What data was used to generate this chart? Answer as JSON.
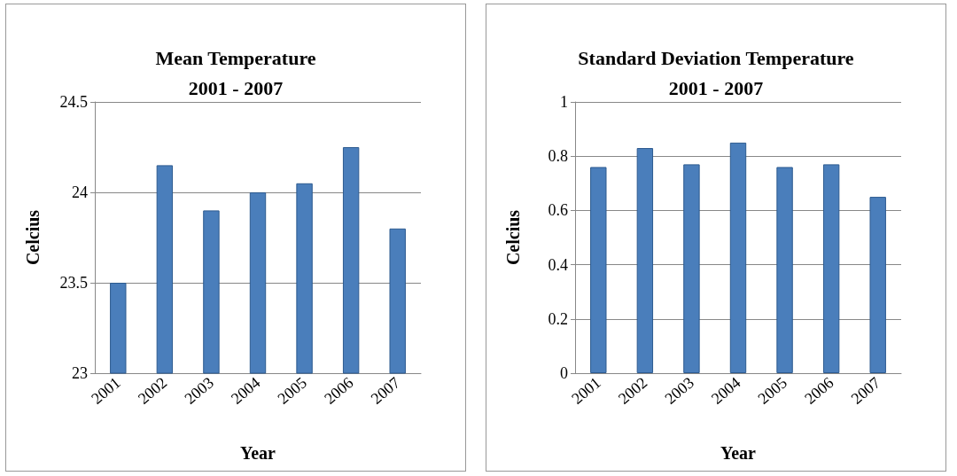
{
  "chart_data": [
    {
      "type": "bar",
      "title": "Mean Temperature\n2001 - 2007",
      "xlabel": "Year",
      "ylabel": "Celcius",
      "categories": [
        "2001",
        "2002",
        "2003",
        "2004",
        "2005",
        "2006",
        "2007"
      ],
      "values": [
        23.5,
        24.15,
        23.9,
        24.0,
        24.05,
        24.25,
        23.8
      ],
      "color": "#4a7ebb",
      "ylim": [
        23,
        24.5
      ],
      "yticks": [
        23,
        23.5,
        24,
        24.5
      ],
      "grid": "y"
    },
    {
      "type": "bar",
      "title": "Standard Deviation Temperature\n2001 - 2007",
      "xlabel": "Year",
      "ylabel": "Celcius",
      "categories": [
        "2001",
        "2002",
        "2003",
        "2004",
        "2005",
        "2006",
        "2007"
      ],
      "values": [
        0.76,
        0.83,
        0.77,
        0.85,
        0.76,
        0.77,
        0.65
      ],
      "color": "#4a7ebb",
      "ylim": [
        0,
        1
      ],
      "yticks": [
        0,
        0.2,
        0.4,
        0.6,
        0.8,
        1
      ],
      "grid": "y"
    }
  ]
}
